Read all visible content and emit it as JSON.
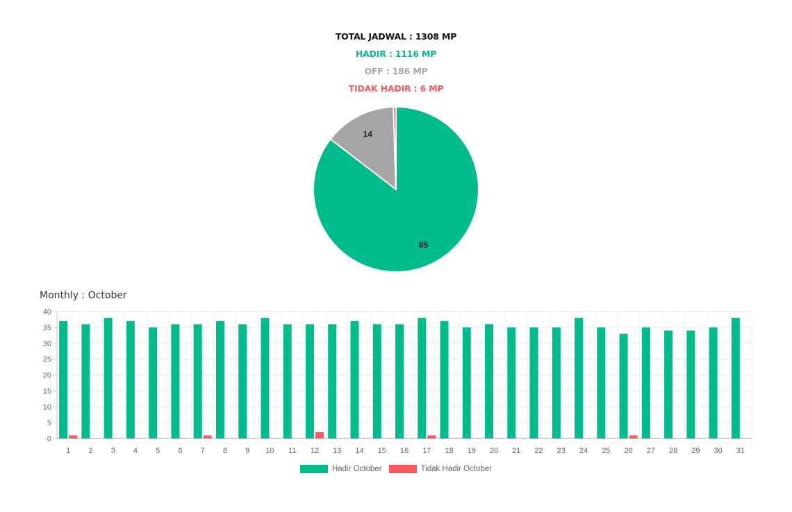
{
  "summary": {
    "total": "TOTAL JADWAL : 1308 MP",
    "hadir": "HADIR : 1116 MP",
    "off": "OFF : 186 MP",
    "tidak_hadir": "TIDAK HADIR : 6 MP"
  },
  "colors": {
    "hadir": "#00bc8c",
    "off": "#a6a6a6",
    "tidak_hadir": "#ff5a5f",
    "text_dark": "#111111"
  },
  "monthly_title": "Monthly : October",
  "chart_data": [
    {
      "type": "pie",
      "slices": [
        {
          "label": "Hadir",
          "value": 85,
          "color": "#00bc8c"
        },
        {
          "label": "Off",
          "value": 14,
          "color": "#a6a6a6"
        },
        {
          "label": "Tidak Hadir",
          "value": 0.5,
          "color": "#ff5a5f"
        }
      ],
      "data_labels": [
        "85",
        "14"
      ]
    },
    {
      "type": "bar",
      "categories": [
        "1",
        "2",
        "3",
        "4",
        "5",
        "6",
        "7",
        "8",
        "9",
        "10",
        "11",
        "12",
        "13",
        "14",
        "15",
        "16",
        "17",
        "18",
        "19",
        "20",
        "21",
        "22",
        "23",
        "24",
        "25",
        "26",
        "27",
        "28",
        "29",
        "30",
        "31"
      ],
      "series": [
        {
          "name": "Hadir October",
          "color": "#00bc8c",
          "values": [
            37,
            36,
            38,
            37,
            35,
            36,
            36,
            37,
            36,
            38,
            36,
            36,
            36,
            37,
            36,
            36,
            38,
            37,
            35,
            36,
            35,
            35,
            35,
            38,
            35,
            33,
            35,
            34,
            34,
            35,
            38
          ]
        },
        {
          "name": "Tidak Hadir October",
          "color": "#ff5a5f",
          "values": [
            1,
            0,
            0,
            0,
            0,
            0,
            1,
            0,
            0,
            0,
            0,
            2,
            0,
            0,
            0,
            0,
            1,
            0,
            0,
            0,
            0,
            0,
            0,
            0,
            0,
            1,
            0,
            0,
            0,
            0,
            0
          ]
        }
      ],
      "ylim": [
        0,
        40
      ],
      "yticks": [
        0,
        5,
        10,
        15,
        20,
        25,
        30,
        35,
        40
      ],
      "grid": true,
      "legend": "bottom"
    }
  ]
}
